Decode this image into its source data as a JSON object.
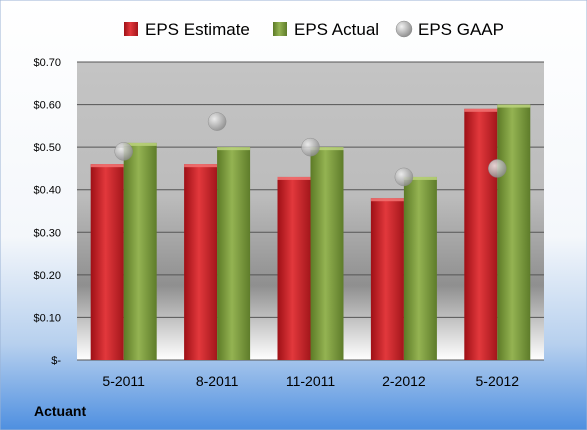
{
  "company": "Actuant",
  "chart_data": {
    "type": "bar",
    "categories": [
      "5-2011",
      "8-2011",
      "11-2011",
      "2-2012",
      "5-2012"
    ],
    "series": [
      {
        "name": "EPS Estimate",
        "kind": "bar",
        "color": "#cc1f26",
        "values": [
          0.46,
          0.46,
          0.43,
          0.38,
          0.59
        ]
      },
      {
        "name": "EPS Actual",
        "kind": "bar",
        "color": "#7a9a3a",
        "values": [
          0.51,
          0.5,
          0.5,
          0.43,
          0.6
        ]
      },
      {
        "name": "EPS GAAP",
        "kind": "marker",
        "color": "#a9a9a9",
        "values": [
          0.49,
          0.56,
          0.5,
          0.43,
          0.45
        ]
      }
    ],
    "ylim": [
      0,
      0.7
    ],
    "y_ticks": [
      {
        "value": 0.0,
        "label": "$-"
      },
      {
        "value": 0.1,
        "label": "$0.10"
      },
      {
        "value": 0.2,
        "label": "$0.20"
      },
      {
        "value": 0.3,
        "label": "$0.30"
      },
      {
        "value": 0.4,
        "label": "$0.40"
      },
      {
        "value": 0.5,
        "label": "$0.50"
      },
      {
        "value": 0.6,
        "label": "$0.60"
      },
      {
        "value": 0.7,
        "label": "$0.70"
      }
    ],
    "grid": true,
    "legend_position": "top"
  }
}
